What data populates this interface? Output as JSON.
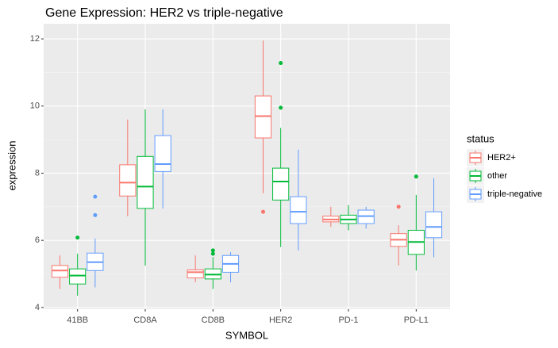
{
  "chart_data": {
    "type": "boxplot",
    "title": "Gene Expression: HER2 vs triple-negative",
    "x_label": "SYMBOL",
    "y_label": "expression",
    "categories": [
      "41BB",
      "CD8A",
      "CD8B",
      "HER2",
      "PD-1",
      "PD-L1"
    ],
    "ylim": [
      3.95,
      12.45
    ],
    "yticks": [
      4,
      6,
      8,
      10,
      12
    ],
    "grid": true,
    "legend_title": "status",
    "legend": "right",
    "series": [
      {
        "name": "HER2+",
        "color": "#F8766D",
        "boxes": [
          {
            "min": 4.55,
            "q1": 4.9,
            "median": 5.1,
            "q3": 5.25,
            "max": 5.55,
            "outliers": []
          },
          {
            "min": 6.72,
            "q1": 7.32,
            "median": 7.72,
            "q3": 8.25,
            "max": 9.6,
            "outliers": []
          },
          {
            "min": 4.75,
            "q1": 4.88,
            "median": 5.05,
            "q3": 5.12,
            "max": 5.55,
            "outliers": []
          },
          {
            "min": 7.4,
            "q1": 9.05,
            "median": 9.7,
            "q3": 10.3,
            "max": 11.95,
            "outliers": [
              6.85
            ]
          },
          {
            "min": 6.4,
            "q1": 6.55,
            "median": 6.62,
            "q3": 6.72,
            "max": 7.0,
            "outliers": []
          },
          {
            "min": 5.25,
            "q1": 5.82,
            "median": 6.02,
            "q3": 6.2,
            "max": 6.45,
            "outliers": [
              7.0
            ]
          }
        ]
      },
      {
        "name": "other",
        "color": "#00BA38",
        "boxes": [
          {
            "min": 4.35,
            "q1": 4.7,
            "median": 4.95,
            "q3": 5.15,
            "max": 5.6,
            "outliers": [
              6.08
            ]
          },
          {
            "min": 5.25,
            "q1": 6.95,
            "median": 7.6,
            "q3": 8.5,
            "max": 9.9,
            "outliers": []
          },
          {
            "min": 4.55,
            "q1": 4.85,
            "median": 4.98,
            "q3": 5.15,
            "max": 5.5,
            "outliers": [
              5.6,
              5.7
            ]
          },
          {
            "min": 5.8,
            "q1": 7.2,
            "median": 7.75,
            "q3": 8.15,
            "max": 9.35,
            "outliers": [
              9.95,
              11.28
            ]
          },
          {
            "min": 6.3,
            "q1": 6.5,
            "median": 6.62,
            "q3": 6.75,
            "max": 7.05,
            "outliers": []
          },
          {
            "min": 5.1,
            "q1": 5.58,
            "median": 5.95,
            "q3": 6.3,
            "max": 7.35,
            "outliers": [
              7.9
            ]
          }
        ]
      },
      {
        "name": "triple-negative",
        "color": "#619CFF",
        "boxes": [
          {
            "min": 4.6,
            "q1": 5.1,
            "median": 5.35,
            "q3": 5.62,
            "max": 6.05,
            "outliers": [
              6.75,
              7.3
            ]
          },
          {
            "min": 6.95,
            "q1": 8.05,
            "median": 8.27,
            "q3": 9.12,
            "max": 9.9,
            "outliers": []
          },
          {
            "min": 4.75,
            "q1": 5.05,
            "median": 5.3,
            "q3": 5.55,
            "max": 5.65,
            "outliers": []
          },
          {
            "min": 5.7,
            "q1": 6.5,
            "median": 6.85,
            "q3": 7.3,
            "max": 8.7,
            "outliers": []
          },
          {
            "min": 6.35,
            "q1": 6.5,
            "median": 6.72,
            "q3": 6.9,
            "max": 7.0,
            "outliers": []
          },
          {
            "min": 5.5,
            "q1": 6.08,
            "median": 6.4,
            "q3": 6.85,
            "max": 7.85,
            "outliers": []
          }
        ]
      }
    ]
  }
}
